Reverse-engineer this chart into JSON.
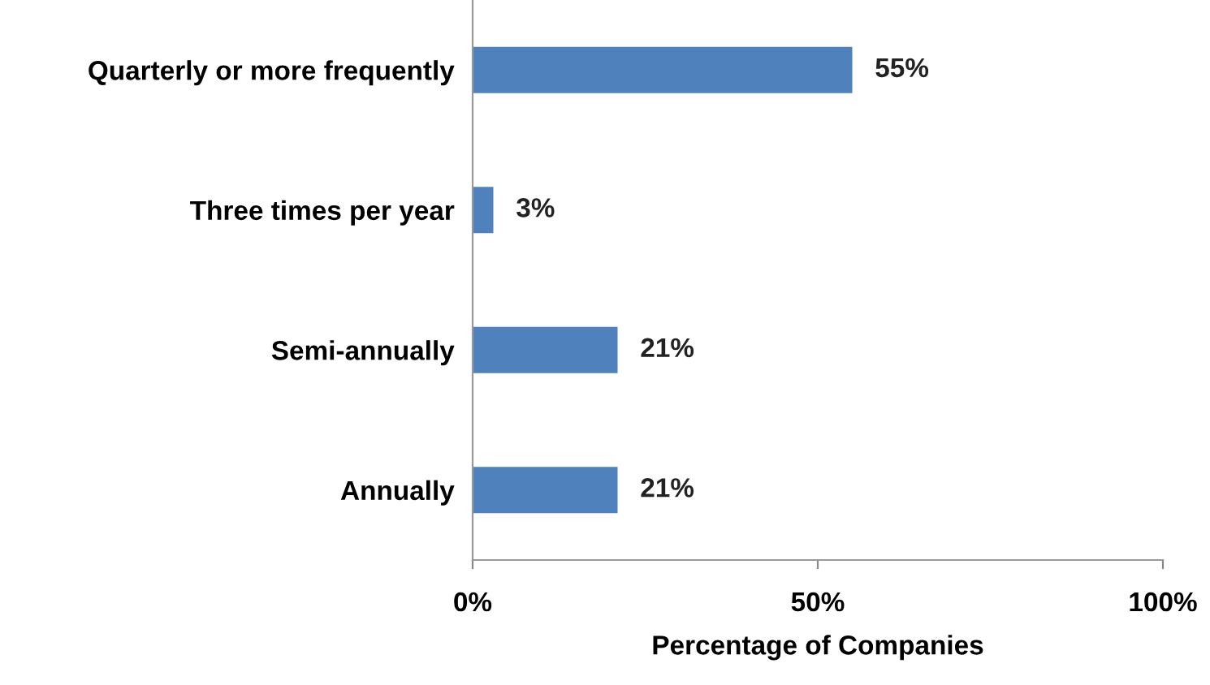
{
  "chart_data": {
    "type": "bar",
    "orientation": "horizontal",
    "xlabel": "Percentage of Companies",
    "categories": [
      "Quarterly or more frequently",
      "Three times per year",
      "Semi-annually",
      "Annually"
    ],
    "values": [
      55,
      3,
      21,
      21
    ],
    "value_labels": [
      "55%",
      "3%",
      "21%",
      "21%"
    ],
    "color": "#4f81bd",
    "xlim": [
      0,
      100
    ],
    "xticks": [
      {
        "value": 0,
        "label": "0%"
      },
      {
        "value": 50,
        "label": "50%"
      },
      {
        "value": 100,
        "label": "100%"
      }
    ],
    "grid": false,
    "legend": false
  }
}
